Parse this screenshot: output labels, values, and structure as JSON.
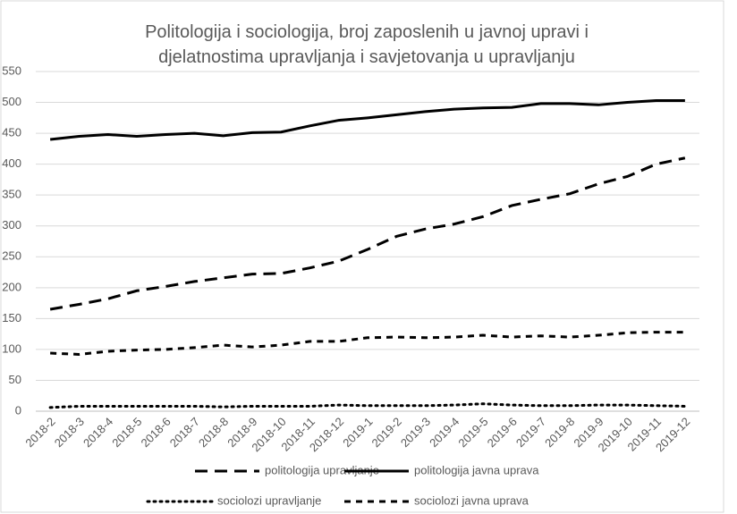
{
  "chart_data": {
    "type": "line",
    "title": "Politologija i sociologija, broj zaposlenih u javnoj upravi i djelatnostima upravljanja i savjetovanja u upravljanju",
    "categories": [
      "2018-2",
      "2018-3",
      "2018-4",
      "2018-5",
      "2018-6",
      "2018-7",
      "2018-8",
      "2018-9",
      "2018-10",
      "2018-11",
      "2018-12",
      "2019-1",
      "2019-2",
      "2019-3",
      "2019-4",
      "2019-5",
      "2019-6",
      "2019-7",
      "2019-8",
      "2019-9",
      "2019-10",
      "2019-11",
      "2019-12"
    ],
    "series": [
      {
        "name": "politologija upravljanje",
        "color": "#000000",
        "dash": "long",
        "values": [
          165,
          173,
          182,
          195,
          202,
          210,
          216,
          222,
          223,
          232,
          243,
          262,
          283,
          295,
          303,
          315,
          333,
          343,
          352,
          368,
          380,
          400,
          410
        ]
      },
      {
        "name": "politologija javna uprava",
        "color": "#000000",
        "dash": "solid",
        "values": [
          440,
          445,
          448,
          445,
          448,
          450,
          446,
          451,
          452,
          462,
          471,
          475,
          480,
          485,
          489,
          491,
          492,
          498,
          498,
          496,
          500,
          503,
          503
        ]
      },
      {
        "name": "sociolozi upravljanje",
        "color": "#000000",
        "dash": "dotted",
        "values": [
          6,
          8,
          8,
          8,
          8,
          8,
          7,
          8,
          8,
          8,
          10,
          9,
          9,
          9,
          10,
          12,
          10,
          9,
          9,
          10,
          10,
          9,
          8
        ]
      },
      {
        "name": "sociolozi javna uprava",
        "color": "#000000",
        "dash": "short",
        "values": [
          94,
          92,
          97,
          99,
          100,
          103,
          107,
          104,
          107,
          113,
          113,
          119,
          120,
          119,
          120,
          123,
          120,
          122,
          120,
          123,
          127,
          128,
          128
        ]
      }
    ],
    "ylim": [
      0,
      550
    ],
    "yticks": [
      0,
      50,
      100,
      150,
      200,
      250,
      300,
      350,
      400,
      450,
      500,
      550
    ],
    "grid": true,
    "legend": "bottom"
  }
}
